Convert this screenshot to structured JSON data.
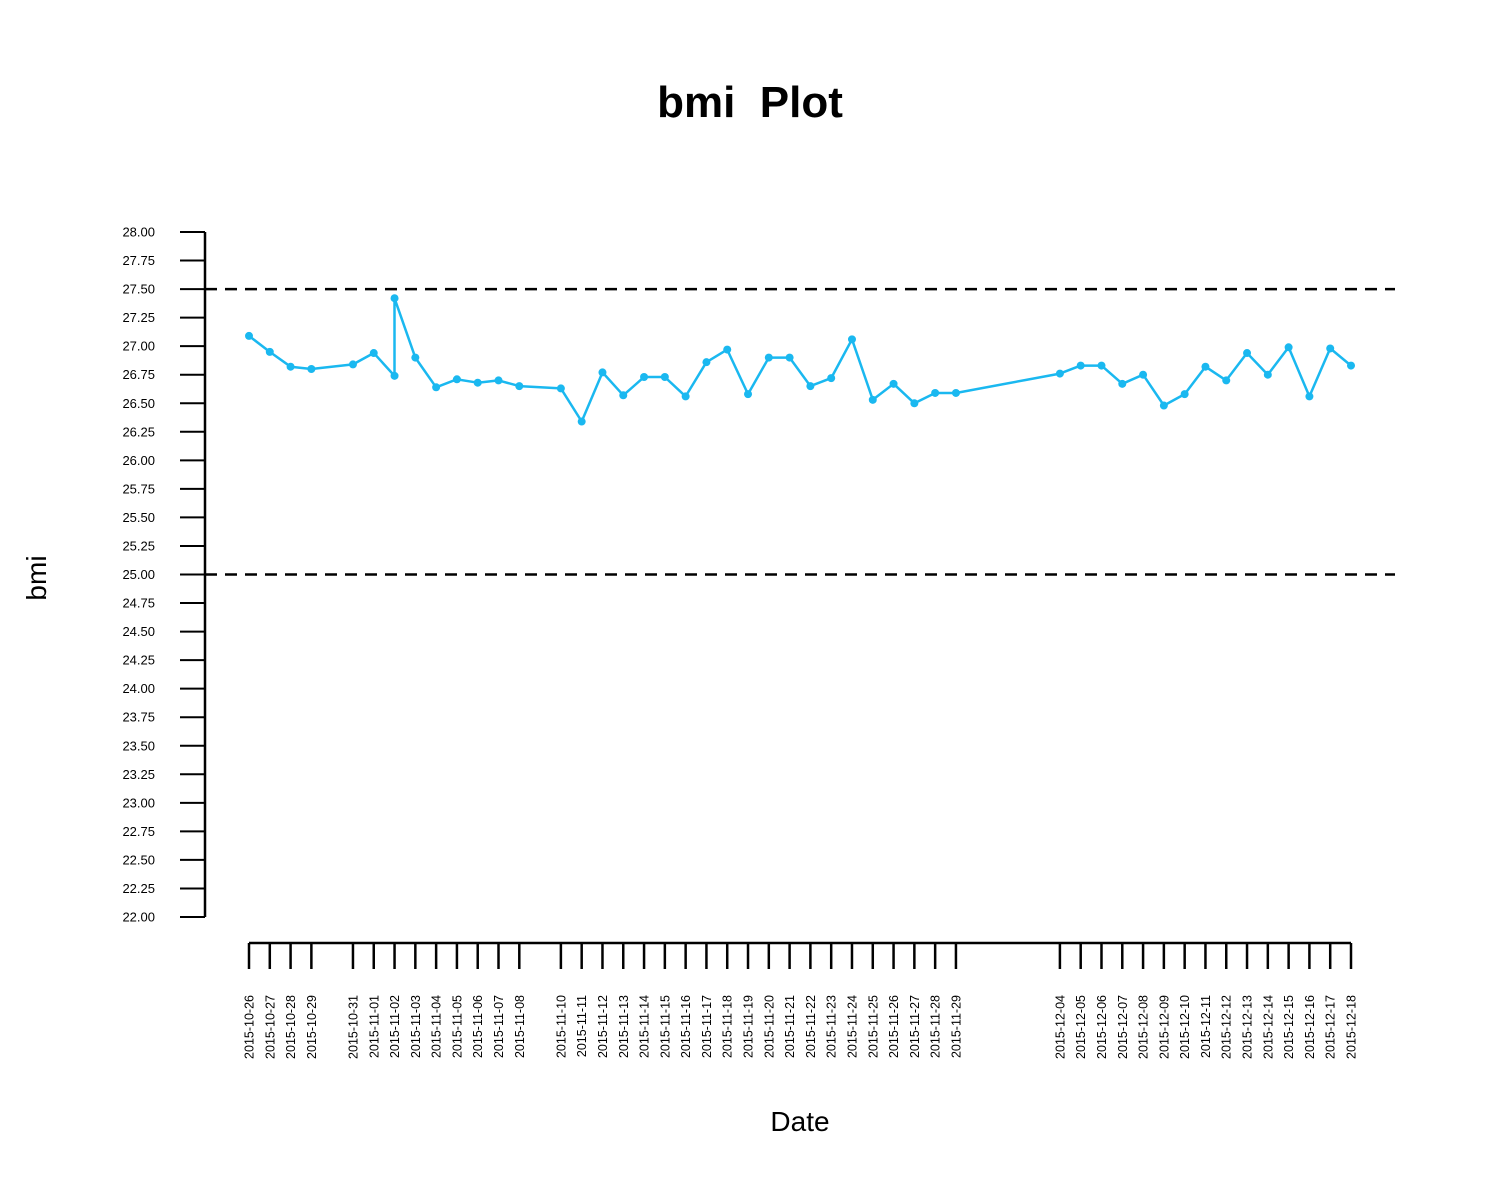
{
  "chart_data": {
    "type": "line",
    "title": "bmi  Plot",
    "xlabel": "Date",
    "ylabel": "bmi",
    "ylim": [
      22.0,
      28.0
    ],
    "y_ticks": [
      "22.00",
      "22.25",
      "22.50",
      "22.75",
      "23.00",
      "23.25",
      "23.50",
      "23.75",
      "24.00",
      "24.25",
      "24.50",
      "24.75",
      "25.00",
      "25.25",
      "25.50",
      "25.75",
      "26.00",
      "26.25",
      "26.50",
      "26.75",
      "27.00",
      "27.25",
      "27.50",
      "27.75",
      "28.00"
    ],
    "x_ticks": [
      "2015-10-26",
      "2015-10-27",
      "2015-10-28",
      "2015-10-29",
      "2015-10-31",
      "2015-11-01",
      "2015-11-02",
      "2015-11-03",
      "2015-11-04",
      "2015-11-05",
      "2015-11-06",
      "2015-11-07",
      "2015-11-08",
      "2015-11-10",
      "2015-11-11",
      "2015-11-12",
      "2015-11-13",
      "2015-11-14",
      "2015-11-15",
      "2015-11-16",
      "2015-11-17",
      "2015-11-18",
      "2015-11-19",
      "2015-11-20",
      "2015-11-21",
      "2015-11-22",
      "2015-11-23",
      "2015-11-24",
      "2015-11-25",
      "2015-11-26",
      "2015-11-27",
      "2015-11-28",
      "2015-11-29",
      "2015-12-04",
      "2015-12-05",
      "2015-12-06",
      "2015-12-07",
      "2015-12-08",
      "2015-12-09",
      "2015-12-10",
      "2015-12-11",
      "2015-12-12",
      "2015-12-13",
      "2015-12-14",
      "2015-12-15",
      "2015-12-16",
      "2015-12-17",
      "2015-12-18"
    ],
    "reference_lines": [
      27.5,
      25.0
    ],
    "series": [
      {
        "color": "#1ab8f0",
        "points": [
          {
            "x": "2015-10-26",
            "y": 27.09
          },
          {
            "x": "2015-10-27",
            "y": 26.95
          },
          {
            "x": "2015-10-28",
            "y": 26.82
          },
          {
            "x": "2015-10-29",
            "y": 26.8
          },
          {
            "x": "2015-10-31",
            "y": 26.84
          },
          {
            "x": "2015-11-01",
            "y": 26.94
          },
          {
            "x": "2015-11-02",
            "y": 26.74
          },
          {
            "x": "2015-11-02",
            "y": 27.42
          },
          {
            "x": "2015-11-03",
            "y": 26.9
          },
          {
            "x": "2015-11-04",
            "y": 26.64
          },
          {
            "x": "2015-11-05",
            "y": 26.71
          },
          {
            "x": "2015-11-06",
            "y": 26.68
          },
          {
            "x": "2015-11-07",
            "y": 26.7
          },
          {
            "x": "2015-11-08",
            "y": 26.65
          },
          {
            "x": "2015-11-10",
            "y": 26.63
          },
          {
            "x": "2015-11-11",
            "y": 26.34
          },
          {
            "x": "2015-11-12",
            "y": 26.77
          },
          {
            "x": "2015-11-13",
            "y": 26.57
          },
          {
            "x": "2015-11-14",
            "y": 26.73
          },
          {
            "x": "2015-11-15",
            "y": 26.73
          },
          {
            "x": "2015-11-16",
            "y": 26.56
          },
          {
            "x": "2015-11-17",
            "y": 26.86
          },
          {
            "x": "2015-11-18",
            "y": 26.97
          },
          {
            "x": "2015-11-19",
            "y": 26.58
          },
          {
            "x": "2015-11-20",
            "y": 26.9
          },
          {
            "x": "2015-11-21",
            "y": 26.9
          },
          {
            "x": "2015-11-22",
            "y": 26.65
          },
          {
            "x": "2015-11-23",
            "y": 26.72
          },
          {
            "x": "2015-11-24",
            "y": 27.06
          },
          {
            "x": "2015-11-25",
            "y": 26.53
          },
          {
            "x": "2015-11-26",
            "y": 26.67
          },
          {
            "x": "2015-11-27",
            "y": 26.5
          },
          {
            "x": "2015-11-28",
            "y": 26.59
          },
          {
            "x": "2015-11-29",
            "y": 26.59
          },
          {
            "x": "2015-12-04",
            "y": 26.76
          },
          {
            "x": "2015-12-05",
            "y": 26.83
          },
          {
            "x": "2015-12-06",
            "y": 26.83
          },
          {
            "x": "2015-12-07",
            "y": 26.67
          },
          {
            "x": "2015-12-08",
            "y": 26.75
          },
          {
            "x": "2015-12-09",
            "y": 26.48
          },
          {
            "x": "2015-12-10",
            "y": 26.58
          },
          {
            "x": "2015-12-11",
            "y": 26.82
          },
          {
            "x": "2015-12-12",
            "y": 26.7
          },
          {
            "x": "2015-12-13",
            "y": 26.94
          },
          {
            "x": "2015-12-14",
            "y": 26.75
          },
          {
            "x": "2015-12-15",
            "y": 26.99
          },
          {
            "x": "2015-12-16",
            "y": 26.56
          },
          {
            "x": "2015-12-17",
            "y": 26.98
          },
          {
            "x": "2015-12-18",
            "y": 26.83
          }
        ]
      }
    ],
    "grid": false,
    "legend": "none"
  }
}
